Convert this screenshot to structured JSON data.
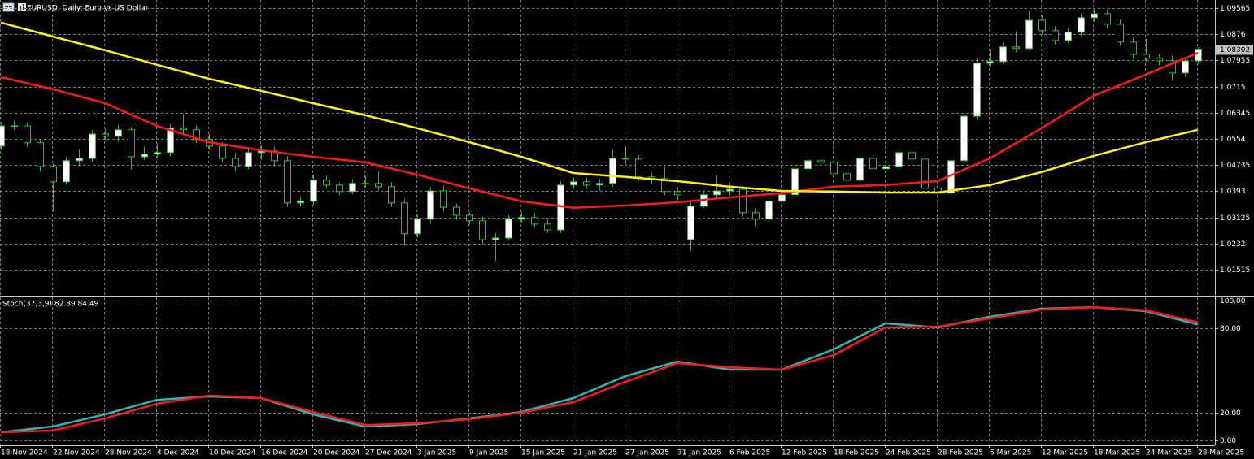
{
  "chart_data": [
    {
      "type": "candlestick",
      "title": "EURUSD, Daily:  Euro vs US Dollar",
      "categories": [
        "18 Nov 2024",
        null,
        null,
        null,
        "22 Nov 2024",
        null,
        null,
        null,
        "28 Nov 2024",
        null,
        null,
        null,
        "4 Dec 2024",
        null,
        null,
        null,
        "10 Dec 2024",
        null,
        null,
        null,
        "16 Dec 2024",
        null,
        null,
        null,
        "20 Dec 2024",
        null,
        null,
        null,
        "27 Dec 2024",
        null,
        null,
        null,
        "3 Jan 2025",
        null,
        null,
        null,
        "9 Jan 2025",
        null,
        null,
        null,
        "15 Jan 2025",
        null,
        null,
        null,
        "21 Jan 2025",
        null,
        null,
        null,
        "27 Jan 2025",
        null,
        null,
        null,
        "31 Jan 2025",
        null,
        null,
        null,
        "6 Feb 2025",
        null,
        null,
        null,
        "12 Feb 2025",
        null,
        null,
        null,
        "18 Feb 2025",
        null,
        null,
        null,
        "24 Feb 2025",
        null,
        null,
        null,
        "28 Feb 2025",
        null,
        null,
        null,
        "6 Mar 2025",
        null,
        null,
        null,
        "12 Mar 2025",
        null,
        null,
        null,
        "18 Mar 2025",
        null,
        null,
        null,
        "24 Mar 2025",
        null,
        null,
        null,
        "28 Mar 2025"
      ],
      "open": [
        1.0532,
        1.0594,
        1.0594,
        1.0542,
        1.0469,
        1.0422,
        1.0487,
        1.0494,
        1.0569,
        1.0562,
        1.0582,
        1.0499,
        1.0507,
        1.0512,
        1.0587,
        1.0582,
        1.0552,
        1.0532,
        1.0494,
        1.0469,
        1.0512,
        1.0517,
        1.0487,
        1.0357,
        1.0362,
        1.0427,
        1.0412,
        1.0392,
        1.0417,
        1.0417,
        1.0407,
        1.0357,
        1.0262,
        1.0307,
        1.0394,
        1.0344,
        1.0319,
        1.0302,
        1.0244,
        1.0249,
        1.0307,
        1.0312,
        1.0292,
        1.0274,
        1.0412,
        1.0422,
        1.0412,
        1.0417,
        1.0494,
        1.0492,
        1.0437,
        1.0432,
        1.0392,
        1.0244,
        1.0347,
        1.0382,
        1.0394,
        1.0399,
        1.0327,
        1.0307,
        1.0362,
        1.0382,
        1.0462,
        1.0487,
        1.0482,
        1.0447,
        1.0427,
        1.0494,
        1.0462,
        1.0469,
        1.0512,
        1.0492,
        1.0402,
        1.0387,
        1.0487,
        1.0624,
        1.0787,
        1.0792,
        1.0837,
        1.0832,
        1.0919,
        1.0887,
        1.0857,
        1.0882,
        1.0927,
        1.0939,
        1.0907,
        1.0852,
        1.0814,
        1.0802,
        1.0794,
        1.0757,
        1.0794
      ],
      "high": [
        1.0606,
        1.061,
        1.0605,
        1.0552,
        1.0478,
        1.0498,
        1.052,
        1.0581,
        1.0585,
        1.0596,
        1.059,
        1.053,
        1.054,
        1.06,
        1.063,
        1.0595,
        1.057,
        1.0545,
        1.051,
        1.053,
        1.0535,
        1.053,
        1.05,
        1.0375,
        1.0445,
        1.044,
        1.042,
        1.043,
        1.044,
        1.0455,
        1.042,
        1.037,
        1.032,
        1.0405,
        1.041,
        1.0355,
        1.033,
        1.0315,
        1.0265,
        1.032,
        1.033,
        1.0325,
        1.0305,
        1.0425,
        1.0435,
        1.0435,
        1.043,
        1.052,
        1.0532,
        1.0505,
        1.045,
        1.047,
        1.0405,
        1.036,
        1.0395,
        1.044,
        1.042,
        1.041,
        1.034,
        1.0375,
        1.04,
        1.0475,
        1.051,
        1.05,
        1.0495,
        1.046,
        1.051,
        1.0505,
        1.05,
        1.0525,
        1.0525,
        1.0505,
        1.0415,
        1.05,
        1.0635,
        1.08,
        1.083,
        1.085,
        1.0885,
        1.0947,
        1.0935,
        1.09,
        1.0895,
        1.094,
        1.0955,
        1.0952,
        1.092,
        1.0865,
        1.0862,
        1.0815,
        1.081,
        1.0805,
        1.0835
      ],
      "low": [
        1.052,
        1.058,
        1.053,
        1.0455,
        1.0332,
        1.0415,
        1.047,
        1.0485,
        1.055,
        1.0545,
        1.046,
        1.049,
        1.0495,
        1.05,
        1.0565,
        1.054,
        1.052,
        1.048,
        1.0455,
        1.046,
        1.049,
        1.047,
        1.0345,
        1.0345,
        1.035,
        1.04,
        1.038,
        1.0385,
        1.0405,
        1.0395,
        1.0345,
        1.0225,
        1.025,
        1.0295,
        1.033,
        1.0305,
        1.029,
        1.023,
        1.0178,
        1.024,
        1.0295,
        1.028,
        1.0265,
        1.0265,
        1.04,
        1.04,
        1.0395,
        1.0405,
        1.0475,
        1.0425,
        1.0415,
        1.038,
        1.0365,
        1.021,
        1.034,
        1.037,
        1.038,
        1.0315,
        1.0285,
        1.03,
        1.035,
        1.037,
        1.045,
        1.047,
        1.0435,
        1.0415,
        1.042,
        1.045,
        1.045,
        1.046,
        1.048,
        1.039,
        1.036,
        1.038,
        1.048,
        1.0615,
        1.0775,
        1.0785,
        1.082,
        1.0825,
        1.0875,
        1.0845,
        1.085,
        1.087,
        1.0915,
        1.0895,
        1.084,
        1.08,
        1.079,
        1.078,
        1.0735,
        1.0745,
        1.0785
      ],
      "close": [
        1.0594,
        1.0594,
        1.0542,
        1.0469,
        1.0422,
        1.0487,
        1.0494,
        1.0569,
        1.0562,
        1.0582,
        1.0499,
        1.0507,
        1.0512,
        1.0587,
        1.0582,
        1.0552,
        1.0532,
        1.0494,
        1.0469,
        1.0512,
        1.0517,
        1.0487,
        1.0357,
        1.0362,
        1.0427,
        1.0412,
        1.0392,
        1.0417,
        1.0417,
        1.0407,
        1.0357,
        1.0262,
        1.0307,
        1.0394,
        1.0344,
        1.0319,
        1.0302,
        1.0244,
        1.0249,
        1.0307,
        1.0312,
        1.0292,
        1.0274,
        1.0412,
        1.0422,
        1.0412,
        1.0417,
        1.0494,
        1.0492,
        1.0437,
        1.0432,
        1.0392,
        1.0382,
        1.0347,
        1.0382,
        1.0394,
        1.0399,
        1.0327,
        1.0307,
        1.0362,
        1.0382,
        1.0462,
        1.0487,
        1.0482,
        1.0447,
        1.0427,
        1.0494,
        1.0462,
        1.0469,
        1.0512,
        1.0492,
        1.0402,
        1.0387,
        1.0487,
        1.0624,
        1.0787,
        1.0792,
        1.0837,
        1.0832,
        1.0919,
        1.0887,
        1.0857,
        1.0882,
        1.0927,
        1.0939,
        1.0907,
        1.0852,
        1.0814,
        1.0802,
        1.0794,
        1.0757,
        1.0794,
        1.083
      ],
      "up_color": "#ffffff",
      "down_color": "#000000",
      "outline_color": "#00e000",
      "ylim": [
        1.0074,
        1.09815
      ],
      "yticks": [
        1.01515,
        1.0232,
        1.03125,
        1.0393,
        1.04735,
        1.0554,
        1.06345,
        1.0715,
        1.07955,
        1.0876,
        1.09565
      ],
      "grid": true,
      "current_price": 1.08302,
      "series": [
        {
          "color": "#ff1a1a",
          "x": [
            "18 Nov 2024",
            "22 Nov 2024",
            "28 Nov 2024",
            "4 Dec 2024",
            "10 Dec 2024",
            "16 Dec 2024",
            "20 Dec 2024",
            "27 Dec 2024",
            "3 Jan 2025",
            "9 Jan 2025",
            "15 Jan 2025",
            "21 Jan 2025",
            "27 Jan 2025",
            "31 Jan 2025",
            "6 Feb 2025",
            "12 Feb 2025",
            "18 Feb 2025",
            "24 Feb 2025",
            "28 Feb 2025",
            "6 Mar 2025",
            "12 Mar 2025",
            "18 Mar 2025",
            "24 Mar 2025",
            "28 Mar 2025"
          ],
          "values": [
            1.0744,
            1.0707,
            1.0664,
            1.0594,
            1.0544,
            1.0519,
            1.0499,
            1.0482,
            1.0444,
            1.0402,
            1.0362,
            1.0342,
            1.0349,
            1.0359,
            1.0374,
            1.0387,
            1.0407,
            1.0412,
            1.0424,
            1.0494,
            1.0587,
            1.0687,
            1.0752,
            1.0819
          ]
        },
        {
          "color": "#ffef1a",
          "x": [
            "18 Nov 2024",
            "22 Nov 2024",
            "28 Nov 2024",
            "4 Dec 2024",
            "10 Dec 2024",
            "16 Dec 2024",
            "20 Dec 2024",
            "27 Dec 2024",
            "3 Jan 2025",
            "9 Jan 2025",
            "15 Jan 2025",
            "21 Jan 2025",
            "27 Jan 2025",
            "31 Jan 2025",
            "6 Feb 2025",
            "12 Feb 2025",
            "18 Feb 2025",
            "24 Feb 2025",
            "28 Feb 2025",
            "6 Mar 2025",
            "12 Mar 2025",
            "18 Mar 2025",
            "24 Mar 2025",
            "28 Mar 2025"
          ],
          "values": [
            1.0912,
            1.0869,
            1.0827,
            1.0782,
            1.0739,
            1.0702,
            1.0664,
            1.0627,
            1.0587,
            1.0544,
            1.0499,
            1.0449,
            1.0437,
            1.0424,
            1.0407,
            1.0394,
            1.0392,
            1.0389,
            1.0389,
            1.0412,
            1.0452,
            1.0502,
            1.0544,
            1.0582
          ]
        }
      ]
    },
    {
      "type": "line",
      "title": "Stoch(37,3,9) 82.89 84.49",
      "x": [
        "18 Nov 2024",
        "22 Nov 2024",
        "28 Nov 2024",
        "4 Dec 2024",
        "10 Dec 2024",
        "16 Dec 2024",
        "20 Dec 2024",
        "27 Dec 2024",
        "3 Jan 2025",
        "9 Jan 2025",
        "15 Jan 2025",
        "21 Jan 2025",
        "27 Jan 2025",
        "31 Jan 2025",
        "6 Feb 2025",
        "12 Feb 2025",
        "18 Feb 2025",
        "24 Feb 2025",
        "28 Feb 2025",
        "6 Mar 2025",
        "12 Mar 2025",
        "18 Mar 2025",
        "24 Mar 2025",
        "28 Mar 2025"
      ],
      "series": [
        {
          "color": "#2fb5b5",
          "values": [
            5.8,
            9.9,
            18.6,
            29,
            31.4,
            30.2,
            18.6,
            9.9,
            11.6,
            15.7,
            20.3,
            30.2,
            45.9,
            56.4,
            50.6,
            50.6,
            65.1,
            83.7,
            80.8,
            88.4,
            94.2,
            95.3,
            92.4,
            82.89
          ]
        },
        {
          "color": "#ff1a1a",
          "values": [
            5.8,
            7,
            15.7,
            26.2,
            32,
            30.2,
            20.3,
            11,
            12.2,
            15.1,
            19.8,
            27.3,
            41.9,
            55.2,
            52.3,
            50.6,
            61,
            80.8,
            81.4,
            87.2,
            93.6,
            95.3,
            93,
            84.49
          ]
        }
      ],
      "ylim": [
        -3.5,
        102.9
      ],
      "yticks": [
        {
          "value": 0,
          "label": "0.00"
        },
        {
          "value": 20,
          "label": "20.00"
        },
        {
          "value": 80,
          "label": "80.00"
        },
        {
          "value": 100,
          "label": "100.00"
        }
      ],
      "grid": true
    }
  ]
}
